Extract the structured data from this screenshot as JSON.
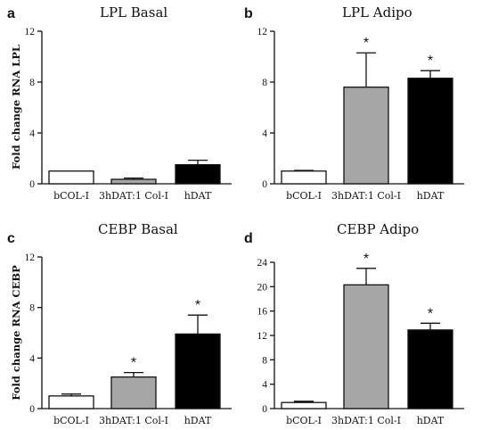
{
  "chart_data": [
    {
      "panel": "a",
      "type": "bar",
      "title": "LPL Basal",
      "ylabel": "Fold change RNA LPL",
      "categories": [
        "bCOL-I",
        "3hDAT:1 Col-I",
        "hDAT"
      ],
      "values": [
        1.0,
        0.35,
        1.5
      ],
      "errors": [
        0.0,
        0.1,
        0.35
      ],
      "significant": [
        false,
        false,
        false
      ],
      "ylim": [
        0,
        12
      ],
      "yticks": [
        "0",
        "4",
        "8",
        "12"
      ],
      "colors": [
        "#ffffff",
        "#a6a6a6",
        "#000000"
      ]
    },
    {
      "panel": "b",
      "type": "bar",
      "title": "LPL Adipo",
      "ylabel": "",
      "categories": [
        "bCOL-I",
        "3hDAT:1 Col-I",
        "hDAT"
      ],
      "values": [
        1.0,
        7.6,
        8.3
      ],
      "errors": [
        0.05,
        2.7,
        0.6
      ],
      "significant": [
        false,
        true,
        true
      ],
      "ylim": [
        0,
        12
      ],
      "yticks": [
        "0",
        "4",
        "8",
        "12"
      ],
      "colors": [
        "#ffffff",
        "#a6a6a6",
        "#000000"
      ]
    },
    {
      "panel": "c",
      "type": "bar",
      "title": "CEBP Basal",
      "ylabel": "Fold change RNA CEBP",
      "categories": [
        "bCOL-I",
        "3hDAT:1 Col-I",
        "hDAT"
      ],
      "values": [
        1.0,
        2.5,
        5.9
      ],
      "errors": [
        0.15,
        0.35,
        1.5
      ],
      "significant": [
        false,
        true,
        true
      ],
      "ylim": [
        0,
        12
      ],
      "yticks": [
        "0",
        "4",
        "8",
        "12"
      ],
      "colors": [
        "#ffffff",
        "#a6a6a6",
        "#000000"
      ]
    },
    {
      "panel": "d",
      "type": "bar",
      "title": "CEBP Adipo",
      "ylabel": "",
      "categories": [
        "bCOL-I",
        "3hDAT:1 Col-I",
        "hDAT"
      ],
      "values": [
        1.0,
        20.3,
        12.9
      ],
      "errors": [
        0.2,
        2.7,
        1.1
      ],
      "significant": [
        false,
        true,
        true
      ],
      "ylim": [
        0,
        24
      ],
      "yticks": [
        "0",
        "4",
        "8",
        "12",
        "16",
        "20",
        "24"
      ],
      "colors": [
        "#ffffff",
        "#a6a6a6",
        "#000000"
      ]
    }
  ],
  "significance_marker": "*"
}
